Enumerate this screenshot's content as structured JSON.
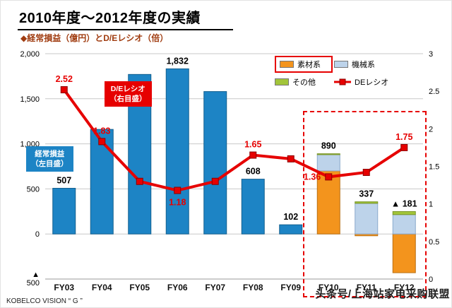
{
  "title": "2010年度～2012年度の実績",
  "subtitle": "◆経常損益（億円）とD/Eレシオ（倍）",
  "legend": {
    "sozai": "素材系",
    "kikai": "機械系",
    "sonota": "その他",
    "de": "DEレシオ"
  },
  "annotations": {
    "de_line1": "D/Eレシオ",
    "de_line2": "（右目盛）",
    "profit_line1": "経常損益",
    "profit_line2": "（左目盛）"
  },
  "footer": {
    "brand": "KOBELCO VISION “ G ”",
    "watermark": "头条号/上海站家电采购联盟"
  },
  "colors": {
    "blue": "#1d84c5",
    "blue_border": "#14608f",
    "orange": "#f3941d",
    "orange_border": "#b96f12",
    "lightblue": "#bdd3ea",
    "lightblue_border": "#8aa9cc",
    "green": "#a2c53a",
    "green_border": "#7a9627",
    "red": "#e60000",
    "red_dark": "#8b0000",
    "grid": "#c8c8c8",
    "maroon": "#a03c10"
  },
  "chart_data": {
    "type": "bar",
    "title": "2010年度～2012年度の実績",
    "subtitle": "◆経常損益（億円）とD/Eレシオ（倍）",
    "categories": [
      "FY03",
      "FY04",
      "FY05",
      "FY06",
      "FY07",
      "FY08",
      "FY09",
      "FY10",
      "FY11",
      "FY12"
    ],
    "unit_left": "億円",
    "unit_right": "倍",
    "series": [
      {
        "name": "経常損益",
        "color_key": "blue",
        "values": [
          507,
          1160,
          1770,
          1832,
          1580,
          608,
          102,
          null,
          null,
          null
        ]
      },
      {
        "name": "素材系",
        "color_key": "orange",
        "values": [
          null,
          null,
          null,
          null,
          null,
          null,
          null,
          700,
          -20,
          -430
        ]
      },
      {
        "name": "機械系",
        "color_key": "lightblue",
        "values": [
          null,
          null,
          null,
          null,
          null,
          null,
          null,
          180,
          340,
          215
        ]
      },
      {
        "name": "その他",
        "color_key": "green",
        "values": [
          null,
          null,
          null,
          null,
          null,
          null,
          null,
          10,
          17,
          34
        ]
      }
    ],
    "line_series": {
      "name": "DEレシオ",
      "color_key": "red",
      "values": [
        2.52,
        1.83,
        1.3,
        1.18,
        1.3,
        1.65,
        1.6,
        1.36,
        1.42,
        1.75
      ]
    },
    "bar_labels": [
      "507",
      "",
      "",
      "1,832",
      "",
      "608",
      "102",
      "890",
      "337",
      "▲ 181"
    ],
    "line_labels": [
      "2.52",
      "1.83",
      "",
      "1.18",
      "",
      "1.65",
      "",
      "1.36",
      "",
      "1.75"
    ],
    "left_axis": {
      "min": -500,
      "max": 2000,
      "ticks": [
        {
          "value": 2000,
          "label": "2,000"
        },
        {
          "value": 1500,
          "label": "1,500"
        },
        {
          "value": 1000,
          "label": "1,000"
        },
        {
          "value": 500,
          "label": "500"
        },
        {
          "value": 0,
          "label": "0"
        },
        {
          "value": -500,
          "label": "▲ 500",
          "wrap": true
        }
      ]
    },
    "right_axis": {
      "min": 0,
      "max": 3,
      "ticks": [
        {
          "value": 3,
          "label": "3"
        },
        {
          "value": 2.5,
          "label": "2.5"
        },
        {
          "value": 2,
          "label": "2"
        },
        {
          "value": 1.5,
          "label": "1.5"
        },
        {
          "value": 1,
          "label": "1"
        },
        {
          "value": 0.5,
          "label": "0.5"
        },
        {
          "value": 0,
          "label": "0"
        }
      ]
    },
    "grid": true,
    "legend_position": "top-right",
    "highlight_region": {
      "categories": [
        "FY10",
        "FY11",
        "FY12"
      ]
    }
  }
}
